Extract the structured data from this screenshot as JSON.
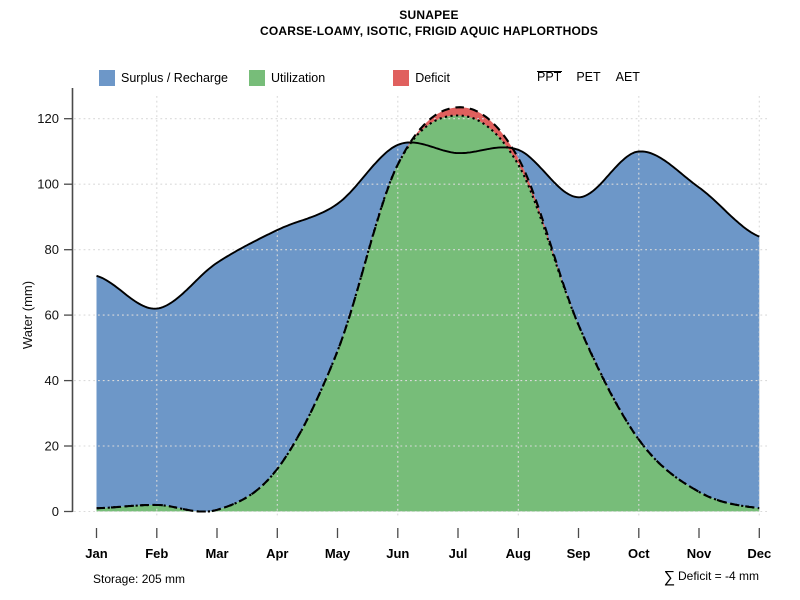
{
  "header": {
    "title": "SUNAPEE",
    "subtitle": "COARSE-LOAMY, ISOTIC, FRIGID AQUIC HAPLORTHODS"
  },
  "legend": {
    "areas": [
      {
        "label": "Surplus / Recharge",
        "color": "#6D97C8"
      },
      {
        "label": "Utilization",
        "color": "#77BD79"
      },
      {
        "label": "Deficit",
        "color": "#E0605E"
      }
    ],
    "lines": [
      {
        "label": "PPT",
        "style": "solid"
      },
      {
        "label": "PET",
        "style": "dashed"
      },
      {
        "label": "AET",
        "style": "dotted"
      }
    ]
  },
  "footer": {
    "storage": "Storage: 205 mm",
    "deficit_sigma": "∑",
    "deficit_text": "Deficit = -4 mm"
  },
  "chart_data": {
    "type": "area",
    "title": "SUNAPEE",
    "subtitle": "COARSE-LOAMY, ISOTIC, FRIGID AQUIC HAPLORTHODS",
    "ylabel": "Water (mm)",
    "x": [
      "Jan",
      "Feb",
      "Mar",
      "Apr",
      "May",
      "Jun",
      "Jul",
      "Aug",
      "Sep",
      "Oct",
      "Nov",
      "Dec"
    ],
    "yticks": [
      0,
      20,
      40,
      60,
      80,
      100,
      120
    ],
    "ylim": [
      0,
      125
    ],
    "grid": "dotted light-gray; horizontal every 20 mm, vertical at Feb/Apr/Jun/Aug/Oct/Dec",
    "legend_position": "top",
    "series": [
      {
        "name": "PPT",
        "style": "solid",
        "values": [
          72,
          62,
          76,
          86,
          94,
          112,
          109.5,
          110.5,
          96,
          110,
          99,
          84
        ]
      },
      {
        "name": "PET",
        "style": "dashed",
        "values": [
          1,
          2,
          0.5,
          13,
          49,
          106,
          123.5,
          108,
          57,
          22,
          6,
          1
        ]
      },
      {
        "name": "AET",
        "style": "dotted",
        "values": [
          1,
          2,
          0.5,
          13,
          49,
          106,
          121,
          106,
          57,
          22,
          6,
          1
        ]
      }
    ],
    "areas": {
      "surplus_recharge": "between PET and PPT where PPT > PET",
      "utilization": "area under AET",
      "deficit": "between AET and PET where PET > AET"
    },
    "storage_mm": 205,
    "deficit_total_mm": -4,
    "colors": {
      "surplus": "#6D97C8",
      "utilization": "#77BD79",
      "deficit": "#E0605E",
      "line": "#000000",
      "grid": "#DADADA",
      "axis": "#4A4A4A"
    }
  }
}
